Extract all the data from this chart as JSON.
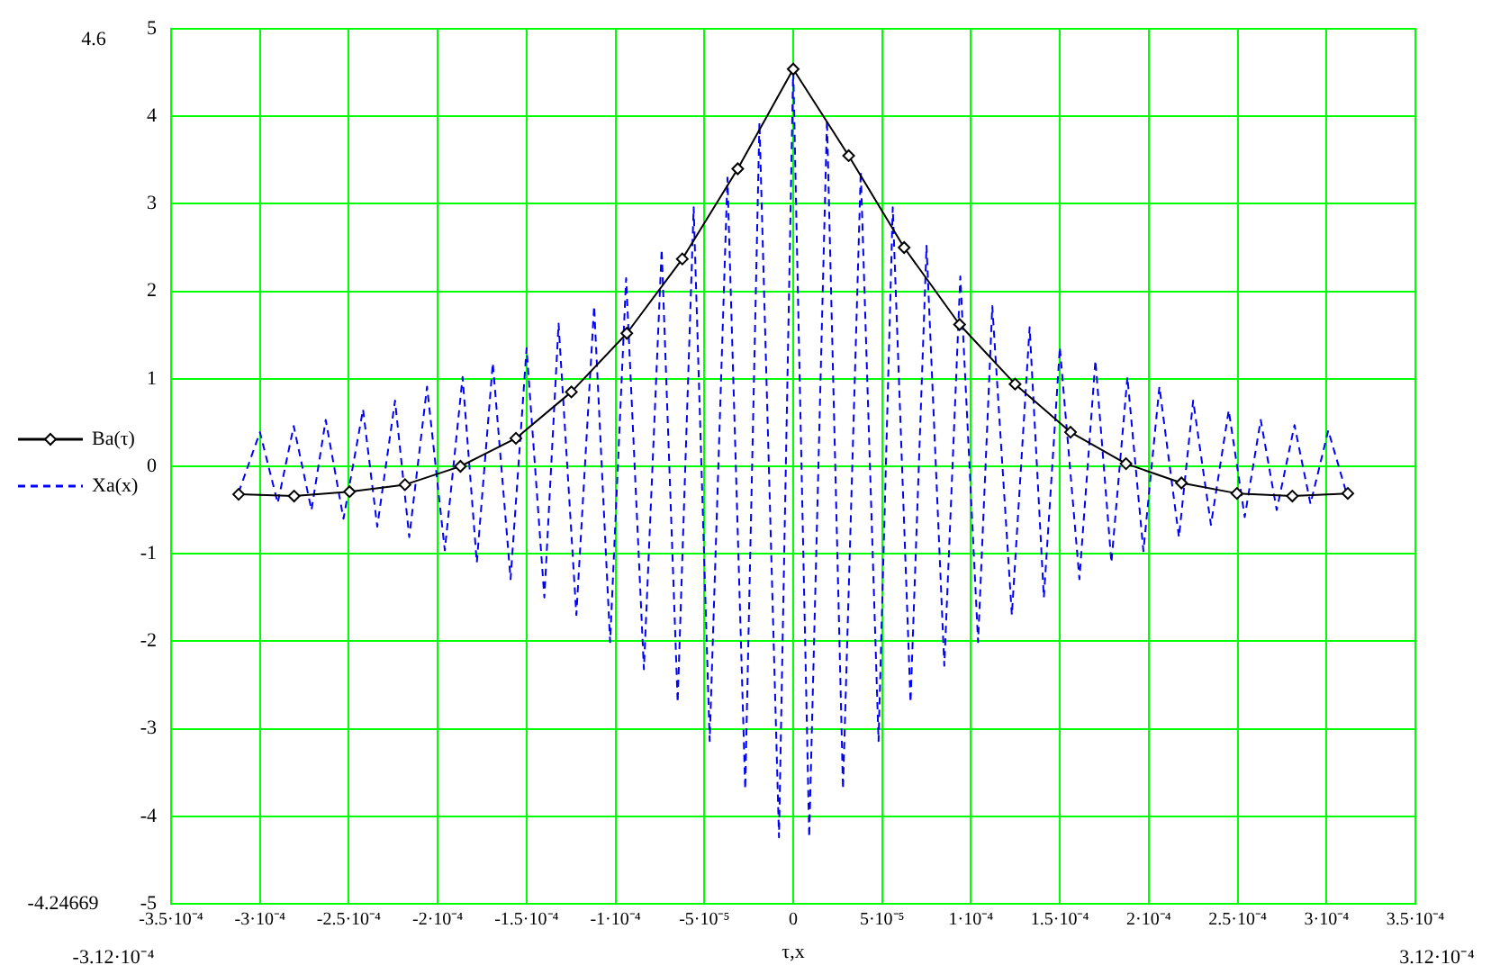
{
  "chart_data": {
    "type": "line",
    "xlabel": "τ,x",
    "xlim": [
      -0.00035,
      0.00035
    ],
    "xticks": [
      {
        "value": -0.00035,
        "label": "-3.5·10⁻⁴"
      },
      {
        "value": -0.0003,
        "label": "-3·10⁻⁴"
      },
      {
        "value": -0.00025,
        "label": "-2.5·10⁻⁴"
      },
      {
        "value": -0.0002,
        "label": "-2·10⁻⁴"
      },
      {
        "value": -0.00015,
        "label": "-1.5·10⁻⁴"
      },
      {
        "value": -0.0001,
        "label": "-1·10⁻⁴"
      },
      {
        "value": -5e-05,
        "label": "-5·10⁻⁵"
      },
      0,
      {
        "value": 5e-05,
        "label": "5·10⁻⁵"
      },
      {
        "value": 0.0001,
        "label": "1·10⁻⁴"
      },
      {
        "value": 0.00015,
        "label": "1.5·10⁻⁴"
      },
      {
        "value": 0.0002,
        "label": "2·10⁻⁴"
      },
      {
        "value": 0.00025,
        "label": "2.5·10⁻⁴"
      },
      {
        "value": 0.0003,
        "label": "3·10⁻⁴"
      },
      {
        "value": 0.00035,
        "label": "3.5·10⁻⁴"
      }
    ],
    "ylim": [
      -5,
      5
    ],
    "yticks": [
      -5,
      -4,
      -3,
      -2,
      -1,
      0,
      1,
      2,
      3,
      4,
      5
    ],
    "grid": true,
    "legend": "left",
    "annotations": [
      "4.6",
      "-4.24669",
      "-3.12·10⁻⁴",
      "3.12·10⁻⁴"
    ],
    "series": [
      {
        "name": "Ba(τ)",
        "color": "#000000",
        "marker": "diamond",
        "line_style": "solid",
        "x": [
          -0.000312,
          -0.0002808,
          -0.0002496,
          -0.0002184,
          -0.0001872,
          -0.000156,
          -0.0001248,
          -9.36e-05,
          -6.24e-05,
          -3.12e-05,
          0,
          3.12e-05,
          6.24e-05,
          9.36e-05,
          0.0001248,
          0.000156,
          0.0001872,
          0.0002184,
          0.0002496,
          0.0002808,
          0.000312
        ],
        "values": [
          -0.32,
          -0.34,
          -0.29,
          -0.21,
          0.0,
          0.32,
          0.85,
          1.52,
          2.37,
          3.4,
          4.54,
          3.55,
          2.5,
          1.62,
          0.94,
          0.39,
          0.03,
          -0.19,
          -0.31,
          -0.34,
          -0.31
        ]
      },
      {
        "name": "Xa(x)",
        "color": "#0000ff",
        "marker": "none",
        "line_style": "dashed",
        "x": [
          -0.000312,
          -0.0003,
          -0.00029,
          -0.000281,
          -0.000271,
          -0.000263,
          -0.000253,
          -0.000242,
          -0.000234,
          -0.000224,
          -0.000216,
          -0.000206,
          -0.000196,
          -0.000186,
          -0.000178,
          -0.000169,
          -0.000159,
          -0.00015,
          -0.00014,
          -0.000132,
          -0.000122,
          -0.000112,
          -0.000103,
          -9.4e-05,
          -8.4e-05,
          -7.4e-05,
          -6.5e-05,
          -5.6e-05,
          -4.7e-05,
          -3.7e-05,
          -2.7e-05,
          -1.9e-05,
          -8e-06,
          0,
          9e-06,
          1.9e-05,
          2.8e-05,
          3.8e-05,
          4.8e-05,
          5.6e-05,
          6.6e-05,
          7.5e-05,
          8.5e-05,
          9.4e-05,
          0.000104,
          0.000112,
          0.000123,
          0.000133,
          0.000141,
          0.00015,
          0.000161,
          0.00017,
          0.000179,
          0.000188,
          0.000197,
          0.000206,
          0.000217,
          0.000225,
          0.000235,
          0.000245,
          0.000254,
          0.000263,
          0.000272,
          0.000282,
          0.000291,
          0.000301,
          0.000311
        ],
        "values": [
          -0.3,
          0.39,
          -0.42,
          0.46,
          -0.5,
          0.53,
          -0.6,
          0.65,
          -0.69,
          0.75,
          -0.81,
          0.91,
          -0.96,
          1.02,
          -1.1,
          1.18,
          -1.29,
          1.35,
          -1.5,
          1.63,
          -1.7,
          1.83,
          -2.01,
          2.15,
          -2.32,
          2.48,
          -2.7,
          2.96,
          -3.14,
          3.3,
          -3.69,
          3.93,
          -4.24,
          4.57,
          -4.24,
          3.96,
          -3.69,
          3.37,
          -3.14,
          2.96,
          -2.7,
          2.52,
          -2.28,
          2.17,
          -2.01,
          1.83,
          -1.7,
          1.59,
          -1.5,
          1.36,
          -1.29,
          1.21,
          -1.1,
          1.02,
          -0.97,
          0.91,
          -0.81,
          0.75,
          -0.67,
          0.64,
          -0.58,
          0.53,
          -0.5,
          0.47,
          -0.43,
          0.41,
          -0.29
        ]
      }
    ]
  }
}
